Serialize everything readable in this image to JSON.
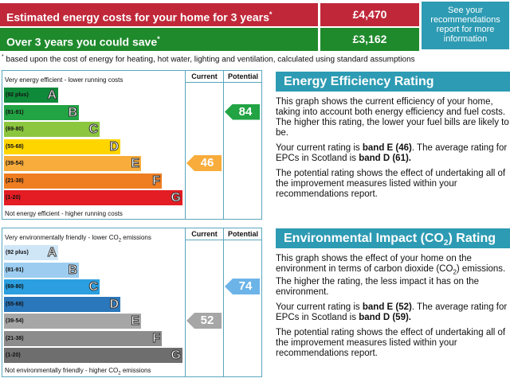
{
  "summary": {
    "row1": {
      "label": "Estimated energy costs for your home for 3 years",
      "mark": "*",
      "value": "£4,470",
      "color": "#c0283a"
    },
    "row2": {
      "label": "Over 3 years you could save",
      "mark": "*",
      "value": "£3,162",
      "color": "#1f8a2c"
    },
    "see_more": "See your recommendations report for more information",
    "footnote_mark": "*",
    "footnote": "based upon the cost of energy for heating, hot water, lighting and ventilation, calculated using standard assumptions"
  },
  "energy_chart": {
    "top_caption": "Very energy efficient - lower running costs",
    "bottom_caption": "Not energy efficient - higher running costs",
    "col_current": "Current",
    "col_potential": "Potential",
    "bands": [
      {
        "range": "(92 plus)",
        "letter": "A",
        "color": "#0f8a3a"
      },
      {
        "range": "(81-91)",
        "letter": "B",
        "color": "#22a344"
      },
      {
        "range": "(69-80)",
        "letter": "C",
        "color": "#8cc63f"
      },
      {
        "range": "(55-68)",
        "letter": "D",
        "color": "#ffd500"
      },
      {
        "range": "(39-54)",
        "letter": "E",
        "color": "#f7ac3b"
      },
      {
        "range": "(21-38)",
        "letter": "F",
        "color": "#ef7d22"
      },
      {
        "range": "(1-20)",
        "letter": "G",
        "color": "#e31d23"
      }
    ],
    "current": {
      "value": "46",
      "color": "#f7ac3b"
    },
    "potential": {
      "value": "84",
      "color": "#22a344"
    }
  },
  "env_chart": {
    "top_caption_pre": "Very environmentally friendly - lower CO",
    "top_caption_sub": "2",
    "top_caption_post": " emissions",
    "bottom_caption_pre": "Not environmentally friendly - higher CO",
    "bottom_caption_sub": "2",
    "bottom_caption_post": " emissions",
    "col_current": "Current",
    "col_potential": "Potential",
    "bands": [
      {
        "range": "(92 plus)",
        "letter": "A",
        "color": "#cfe6f7"
      },
      {
        "range": "(81-91)",
        "letter": "B",
        "color": "#9ccdf0"
      },
      {
        "range": "(69-80)",
        "letter": "C",
        "color": "#2b9fe0"
      },
      {
        "range": "(55-68)",
        "letter": "D",
        "color": "#2a77bb"
      },
      {
        "range": "(39-54)",
        "letter": "E",
        "color": "#a6a6a6"
      },
      {
        "range": "(21-38)",
        "letter": "F",
        "color": "#8c8c8c"
      },
      {
        "range": "(1-20)",
        "letter": "G",
        "color": "#6e6e6e"
      }
    ],
    "current": {
      "value": "52",
      "color": "#a6a6a6"
    },
    "potential": {
      "value": "74",
      "color": "#6cb4e8"
    }
  },
  "eer_panel": {
    "title": "Energy Efficiency Rating",
    "p1": "This graph shows the current efficiency of your home, taking into account both energy efficiency and fuel costs. The higher this rating, the lower your fuel bills are likely to be.",
    "p2_pre": "Your current rating is ",
    "p2_bold1": "band E (46)",
    "p2_mid": ". The average rating for EPCs in Scotland is ",
    "p2_bold2": "band D (61).",
    "p3": "The potential rating shows the effect of undertaking all of the improvement measures listed within your recommendations report."
  },
  "eir_panel": {
    "title_pre": "Environmental Impact (CO",
    "title_sub": "2",
    "title_post": ") Rating",
    "p1_pre": "This graph shows the effect of your home on the environment in terms of carbon dioxide (CO",
    "p1_sub": "2",
    "p1_post": ") emissions. The higher the rating, the less impact it has on the environment.",
    "p2_pre": "Your current rating is ",
    "p2_bold1": "band E (52)",
    "p2_mid": ". The average rating for EPCs in Scotland is ",
    "p2_bold2": "band D (59).",
    "p3": "The potential rating shows the effect of undertaking all of the improvement measures listed within your recommendations report."
  }
}
